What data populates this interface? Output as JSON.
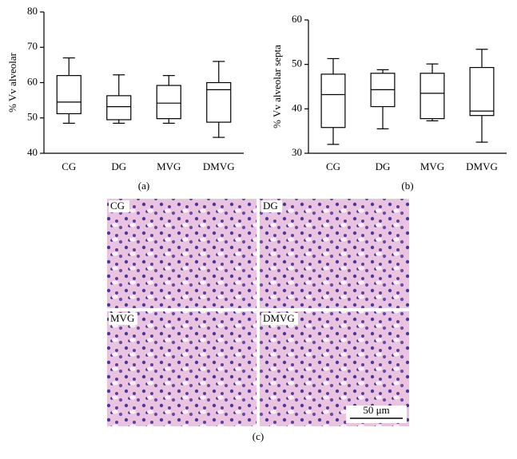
{
  "chart_data": [
    {
      "type": "box",
      "ylabel": "% Vv alveolar",
      "caption": "(a)",
      "categories": [
        "CG",
        "DG",
        "MVG",
        "DMVG"
      ],
      "min": [
        48.5,
        48.5,
        48.5,
        44.5
      ],
      "q1": [
        51.2,
        49.5,
        49.8,
        48.8
      ],
      "median": [
        54.5,
        53.2,
        54.2,
        58
      ],
      "q3": [
        62,
        56.3,
        59.2,
        60
      ],
      "max": [
        67,
        62.2,
        62,
        66
      ],
      "ylim": [
        40,
        80
      ],
      "yticks": [
        40,
        50,
        60,
        70,
        80
      ],
      "color": "#000000"
    },
    {
      "type": "box",
      "ylabel": "% Vv alveolar septa",
      "caption": "(b)",
      "categories": [
        "CG",
        "DG",
        "MVG",
        "DMVG"
      ],
      "min": [
        32,
        35.5,
        37.3,
        32.5
      ],
      "q1": [
        35.8,
        40.5,
        37.8,
        38.5
      ],
      "median": [
        43.2,
        44.3,
        43.5,
        39.5
      ],
      "q3": [
        47.8,
        48,
        48,
        49.3
      ],
      "max": [
        51.3,
        48.8,
        50.1,
        53.4
      ],
      "ylim": [
        30,
        60
      ],
      "yticks": [
        30,
        40,
        50,
        60
      ],
      "color": "#000000"
    }
  ],
  "micrographs": {
    "labels": [
      "CG",
      "DG",
      "MVG",
      "DMVG"
    ],
    "scale_bar": "50 μm",
    "caption": "(c)"
  }
}
